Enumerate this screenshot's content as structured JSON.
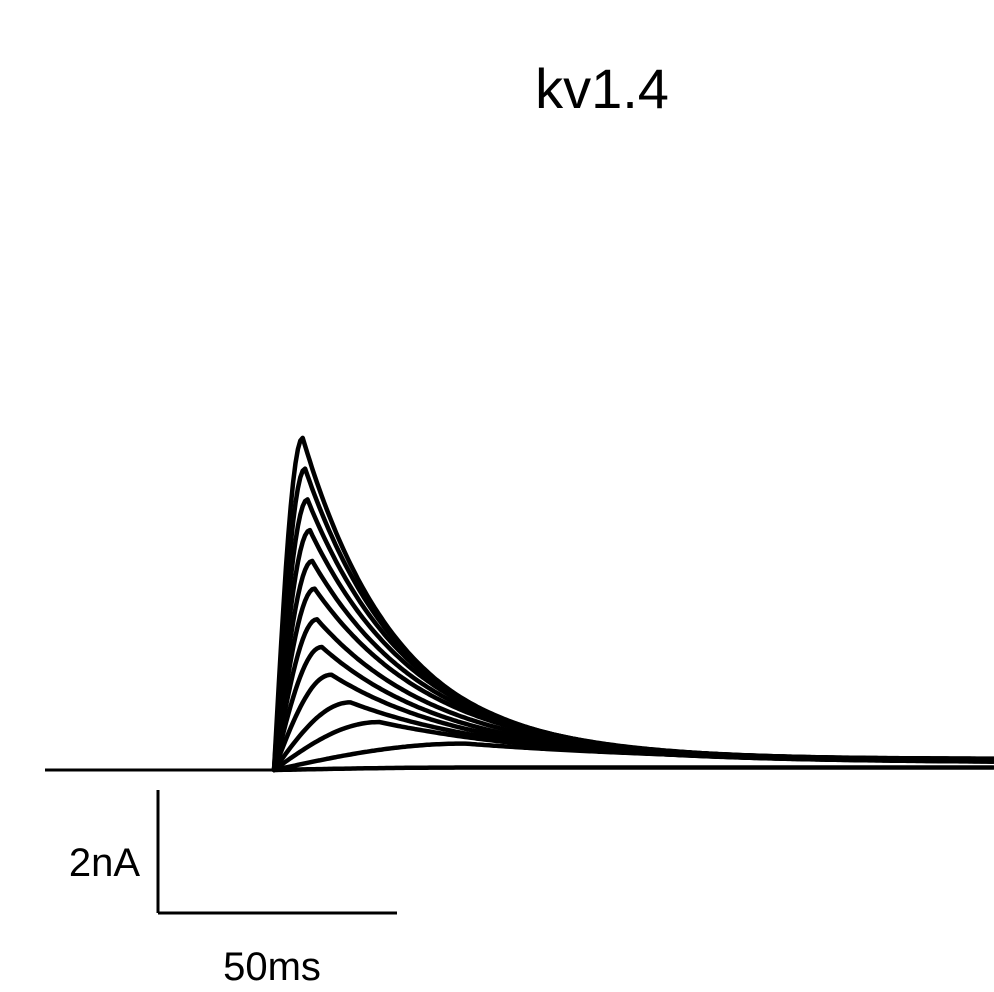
{
  "title": "kv1.4",
  "scale_bar": {
    "current_label": "2nA",
    "time_label": "50ms",
    "current_nA": 2,
    "time_ms": 50
  },
  "chart_data": {
    "type": "line",
    "title": "kv1.4",
    "xlabel": "",
    "ylabel": "",
    "x_unit": "ms",
    "y_unit": "nA",
    "xlim": [
      -95,
      210
    ],
    "ylim": [
      0,
      6.5
    ],
    "step_onset_ms": 0,
    "baseline_nA": 0,
    "grid": false,
    "color": "#000000",
    "series": [
      {
        "peak_nA": 5.4,
        "peak_time_ms": 6,
        "late_nA": 0.18,
        "decay_tau_ms": 20
      },
      {
        "peak_nA": 4.9,
        "peak_time_ms": 6.5,
        "late_nA": 0.18,
        "decay_tau_ms": 21
      },
      {
        "peak_nA": 4.4,
        "peak_time_ms": 7,
        "late_nA": 0.17,
        "decay_tau_ms": 22
      },
      {
        "peak_nA": 3.9,
        "peak_time_ms": 7.5,
        "late_nA": 0.17,
        "decay_tau_ms": 23
      },
      {
        "peak_nA": 3.4,
        "peak_time_ms": 8,
        "late_nA": 0.16,
        "decay_tau_ms": 24
      },
      {
        "peak_nA": 2.95,
        "peak_time_ms": 8.5,
        "late_nA": 0.16,
        "decay_tau_ms": 25
      },
      {
        "peak_nA": 2.45,
        "peak_time_ms": 9,
        "late_nA": 0.15,
        "decay_tau_ms": 26
      },
      {
        "peak_nA": 2.0,
        "peak_time_ms": 10,
        "late_nA": 0.14,
        "decay_tau_ms": 27
      },
      {
        "peak_nA": 1.55,
        "peak_time_ms": 12,
        "late_nA": 0.13,
        "decay_tau_ms": 29
      },
      {
        "peak_nA": 1.1,
        "peak_time_ms": 16,
        "late_nA": 0.12,
        "decay_tau_ms": 33
      },
      {
        "peak_nA": 0.78,
        "peak_time_ms": 22,
        "late_nA": 0.11,
        "decay_tau_ms": 40
      },
      {
        "peak_nA": 0.43,
        "peak_time_ms": 40,
        "late_nA": 0.1,
        "decay_tau_ms": 55
      },
      {
        "peak_nA": 0.04,
        "peak_time_ms": 40,
        "late_nA": 0.04,
        "decay_tau_ms": 200
      }
    ]
  }
}
